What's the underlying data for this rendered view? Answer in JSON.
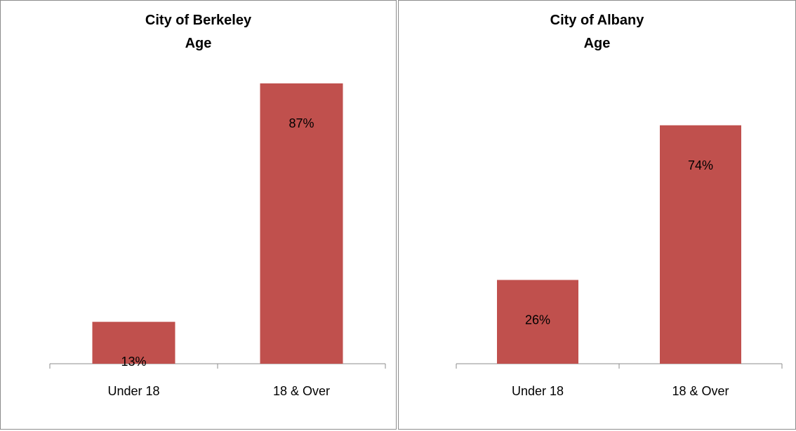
{
  "colors": {
    "bar": "#c0504d",
    "axis": "#8c8c8c",
    "border": "#8c8c8c"
  },
  "chart_data": [
    {
      "type": "bar",
      "title": [
        "City of Berkeley",
        "Age"
      ],
      "categories": [
        "Under 18",
        "18 & Over"
      ],
      "values": [
        13,
        87
      ],
      "data_labels": [
        "13%",
        "87%"
      ],
      "ylim": [
        0,
        100
      ],
      "grid": false,
      "legend": "none"
    },
    {
      "type": "bar",
      "title": [
        "City of Albany",
        "Age"
      ],
      "categories": [
        "Under 18",
        "18 & Over"
      ],
      "values": [
        26,
        74
      ],
      "data_labels": [
        "26%",
        "74%"
      ],
      "ylim": [
        0,
        100
      ],
      "grid": false,
      "legend": "none"
    }
  ]
}
